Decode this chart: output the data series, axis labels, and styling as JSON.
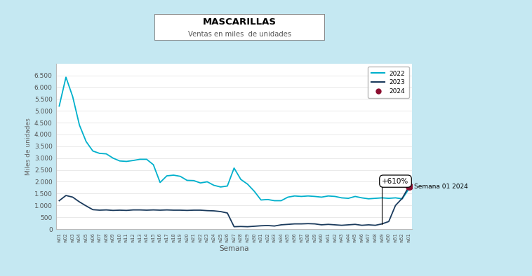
{
  "title": "MASCARILLAS",
  "subtitle": "Ventas en miles  de unidades",
  "xlabel": "Semana",
  "ylabel": "Miles de unidades",
  "background_outer": "#c5e8f2",
  "background_inner": "#ffffff",
  "header_bar_color": "#1a4a6b",
  "line_2022_color": "#00b0cc",
  "line_2023_color": "#1a3a5c",
  "line_2024_color": "#8b0d2f",
  "ylim": [
    0,
    7000
  ],
  "yticks": [
    0,
    500,
    1000,
    1500,
    2000,
    2500,
    3000,
    3500,
    4000,
    4500,
    5000,
    5500,
    6000,
    6500
  ],
  "annotation_text": "+610%",
  "annotation_label": "Semana 01 2024",
  "x_labels": [
    "w01",
    "w02",
    "w03",
    "w04",
    "w05",
    "w06",
    "w07",
    "w08",
    "w09",
    "w10",
    "w11",
    "w12",
    "w13",
    "w14",
    "w15",
    "w16",
    "w17",
    "w18",
    "w19",
    "w20",
    "w21",
    "w22",
    "w23",
    "w24",
    "w25",
    "w26",
    "w27",
    "w28",
    "w29",
    "w30",
    "w31",
    "w32",
    "w33",
    "w34",
    "w35",
    "w36",
    "w37",
    "w38",
    "w39",
    "w40",
    "w41",
    "w42",
    "w43",
    "w44",
    "w45",
    "w46",
    "w47",
    "w48",
    "w49",
    "w50",
    "w51",
    "w52",
    "w01"
  ],
  "values_2022": [
    5200,
    6420,
    5600,
    4400,
    3700,
    3300,
    3200,
    3180,
    3000,
    2880,
    2860,
    2900,
    2950,
    2950,
    2720,
    1970,
    2250,
    2280,
    2230,
    2060,
    2050,
    1950,
    2000,
    1850,
    1780,
    1820,
    2580,
    2100,
    1900,
    1600,
    1230,
    1250,
    1200,
    1200,
    1350,
    1400,
    1380,
    1400,
    1380,
    1350,
    1400,
    1380,
    1320,
    1300,
    1380,
    1320,
    1280,
    1300,
    1320,
    1300,
    1320,
    1280,
    1700
  ],
  "values_2023": [
    1200,
    1420,
    1350,
    1150,
    980,
    820,
    800,
    810,
    790,
    800,
    790,
    810,
    810,
    800,
    810,
    800,
    810,
    800,
    800,
    790,
    800,
    800,
    780,
    770,
    740,
    680,
    100,
    110,
    100,
    120,
    140,
    150,
    130,
    180,
    200,
    220,
    220,
    230,
    220,
    180,
    200,
    180,
    160,
    180,
    200,
    160,
    180,
    160,
    220,
    320,
    1000,
    1300,
    1800
  ],
  "values_2024": [
    1800
  ],
  "legend_2022": "2022",
  "legend_2023": "2023",
  "legend_2024": "2024"
}
